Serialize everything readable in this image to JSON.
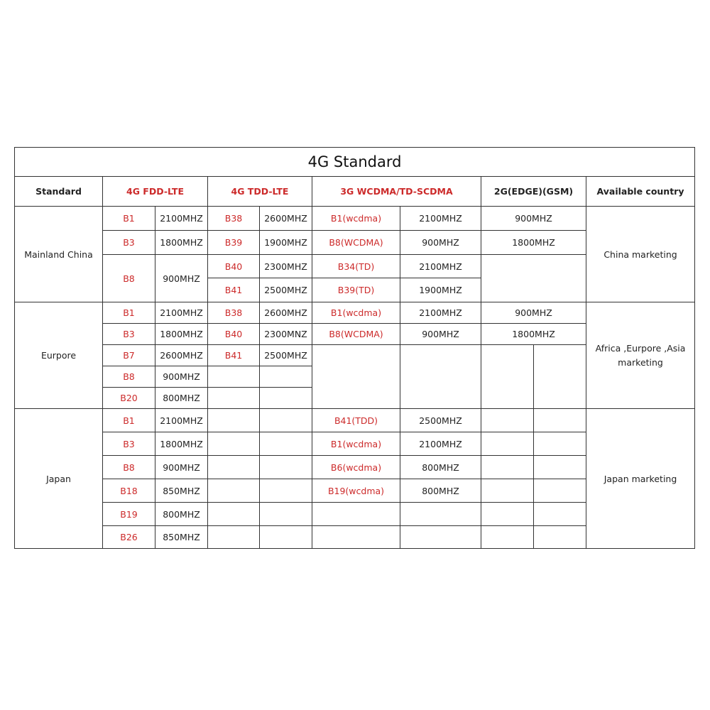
{
  "title": "4G Standard",
  "colors": {
    "red_text": "#cc2a2a",
    "border": "#333333"
  },
  "rows": [
    [
      {
        "text": "4G Standard",
        "cs": 10,
        "cls": "title",
        "h": 41
      }
    ],
    [
      {
        "text": "Standard",
        "cls": "bold",
        "h": 42
      },
      {
        "text": "4G FDD-LTE",
        "cs": 2,
        "cls": "bold red"
      },
      {
        "text": "4G TDD-LTE",
        "cs": 2,
        "cls": "bold red"
      },
      {
        "text": "3G WCDMA/TD-SCDMA",
        "cs": 2,
        "cls": "bold red"
      },
      {
        "text": "2G(EDGE)(GSM)",
        "cs": 2,
        "cls": "bold"
      },
      {
        "text": "Available country",
        "cls": "bold"
      }
    ],
    [
      {
        "text": "Mainland China",
        "rs": 4,
        "h": 34
      },
      {
        "text": "B1",
        "cls": "red"
      },
      {
        "text": "2100MHZ"
      },
      {
        "text": "B38",
        "cls": "red"
      },
      {
        "text": "2600MHZ"
      },
      {
        "text": "B1(wcdma)",
        "cls": "red"
      },
      {
        "text": "2100MHZ"
      },
      {
        "text": "900MHZ",
        "cs": 2
      },
      {
        "text": "China marketing",
        "rs": 4
      }
    ],
    [
      {
        "text": "B3",
        "cls": "red",
        "h": 34
      },
      {
        "text": "1800MHZ"
      },
      {
        "text": "B39",
        "cls": "red"
      },
      {
        "text": "1900MHZ"
      },
      {
        "text": "B8(WCDMA)",
        "cls": "red"
      },
      {
        "text": "900MHZ"
      },
      {
        "text": "1800MHZ",
        "cs": 2
      }
    ],
    [
      {
        "text": "B8",
        "cls": "red",
        "rs": 2,
        "h": 33
      },
      {
        "text": "900MHZ",
        "rs": 2
      },
      {
        "text": "B40",
        "cls": "red"
      },
      {
        "text": "2300MHZ"
      },
      {
        "text": "B34(TD)",
        "cls": "red"
      },
      {
        "text": "2100MHZ"
      },
      {
        "text": "",
        "cs": 2,
        "rs": 2
      }
    ],
    [
      {
        "text": "B41",
        "cls": "red",
        "h": 34
      },
      {
        "text": "2500MHZ"
      },
      {
        "text": "B39(TD)",
        "cls": "red"
      },
      {
        "text": "1900MHZ"
      }
    ],
    [
      {
        "text": "Eurpore",
        "rs": 5,
        "h": 30
      },
      {
        "text": "B1",
        "cls": "red"
      },
      {
        "text": "2100MHZ"
      },
      {
        "text": "B38",
        "cls": "red"
      },
      {
        "text": "2600MHZ"
      },
      {
        "text": "B1(wcdma)",
        "cls": "red"
      },
      {
        "text": "2100MHZ"
      },
      {
        "text": "900MHZ",
        "cs": 2
      },
      {
        "text": "Africa ,Eurpore ,Asia marketing",
        "rs": 5,
        "cls": "wrap"
      }
    ],
    [
      {
        "text": "B3",
        "cls": "red",
        "h": 30
      },
      {
        "text": "1800MHZ"
      },
      {
        "text": "B40",
        "cls": "red"
      },
      {
        "text": "2300MNZ"
      },
      {
        "text": "B8(WCDMA)",
        "cls": "red"
      },
      {
        "text": "900MHZ"
      },
      {
        "text": "1800MHZ",
        "cs": 2
      }
    ],
    [
      {
        "text": "B7",
        "cls": "red",
        "h": 30
      },
      {
        "text": "2600MHZ"
      },
      {
        "text": "B41",
        "cls": "red"
      },
      {
        "text": "2500MHZ"
      },
      {
        "text": "",
        "rs": 3
      },
      {
        "text": "",
        "rs": 3
      },
      {
        "text": "",
        "rs": 3
      },
      {
        "text": "",
        "rs": 3
      }
    ],
    [
      {
        "text": "B8",
        "cls": "red",
        "h": 30
      },
      {
        "text": "900MHZ"
      },
      {
        "text": ""
      },
      {
        "text": ""
      }
    ],
    [
      {
        "text": "B20",
        "cls": "red",
        "h": 30
      },
      {
        "text": "800MHZ"
      },
      {
        "text": ""
      },
      {
        "text": ""
      }
    ],
    [
      {
        "text": "Japan",
        "rs": 6,
        "h": 33
      },
      {
        "text": "B1",
        "cls": "red"
      },
      {
        "text": "2100MHZ"
      },
      {
        "text": ""
      },
      {
        "text": ""
      },
      {
        "text": "B41(TDD)",
        "cls": "red"
      },
      {
        "text": "2500MHZ"
      },
      {
        "text": ""
      },
      {
        "text": ""
      },
      {
        "text": "Japan marketing",
        "rs": 6
      }
    ],
    [
      {
        "text": "B3",
        "cls": "red",
        "h": 33
      },
      {
        "text": "1800MHZ"
      },
      {
        "text": ""
      },
      {
        "text": ""
      },
      {
        "text": "B1(wcdma)",
        "cls": "red"
      },
      {
        "text": "2100MHZ"
      },
      {
        "text": ""
      },
      {
        "text": ""
      }
    ],
    [
      {
        "text": "B8",
        "cls": "red",
        "h": 33
      },
      {
        "text": "900MHZ"
      },
      {
        "text": ""
      },
      {
        "text": ""
      },
      {
        "text": "B6(wcdma)",
        "cls": "red"
      },
      {
        "text": "800MHZ"
      },
      {
        "text": ""
      },
      {
        "text": ""
      }
    ],
    [
      {
        "text": "B18",
        "cls": "red",
        "h": 33
      },
      {
        "text": "850MHZ"
      },
      {
        "text": ""
      },
      {
        "text": ""
      },
      {
        "text": "B19(wcdma)",
        "cls": "red"
      },
      {
        "text": "800MHZ"
      },
      {
        "text": ""
      },
      {
        "text": ""
      }
    ],
    [
      {
        "text": "B19",
        "cls": "red",
        "h": 33
      },
      {
        "text": "800MHZ"
      },
      {
        "text": ""
      },
      {
        "text": ""
      },
      {
        "text": ""
      },
      {
        "text": ""
      },
      {
        "text": ""
      },
      {
        "text": ""
      }
    ],
    [
      {
        "text": "B26",
        "cls": "red",
        "h": 32
      },
      {
        "text": "850MHZ"
      },
      {
        "text": ""
      },
      {
        "text": ""
      },
      {
        "text": ""
      },
      {
        "text": ""
      },
      {
        "text": ""
      },
      {
        "text": ""
      }
    ]
  ]
}
